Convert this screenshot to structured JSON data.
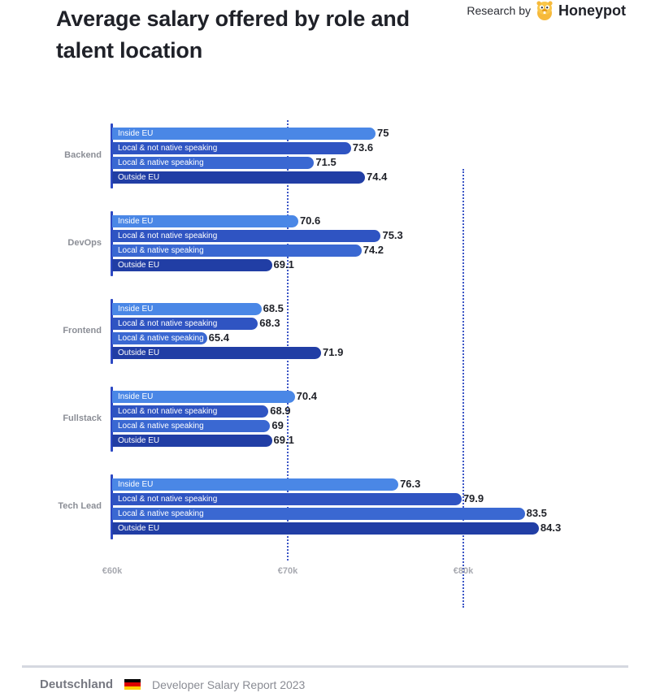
{
  "header": {
    "title": "Average salary offered by role and talent location",
    "brand_prefix": "Research by",
    "brand_name": "Honeypot",
    "brand_icon": "honeypot-bear-logo-icon"
  },
  "footer": {
    "country": "Deutschland",
    "flag_icon": "germany-flag-icon",
    "flag_colors": [
      "#000000",
      "#dd0000",
      "#ffce00"
    ],
    "report": "Developer Salary Report 2023"
  },
  "colors": {
    "Inside EU": "#4a87e6",
    "Local & not native speaking": "#2f54c2",
    "Local & native speaking": "#3a68d2",
    "Outside EU": "#213ea5",
    "gridline": "#3b55c6",
    "axis": "#2d49c4"
  },
  "chart_data": {
    "type": "bar",
    "orientation": "horizontal",
    "title": "Average salary offered by role and talent location",
    "xlabel": "",
    "ylabel": "",
    "unit": "€k",
    "xlim": [
      60,
      85
    ],
    "x_ticks": [
      "€60k",
      "€70k",
      "€80k"
    ],
    "x_tick_values": [
      60,
      70,
      80
    ],
    "grid": "dotted vertical lines at €70k and €80k",
    "legend": "inline labels inside bars",
    "categories": [
      "Backend",
      "DevOps",
      "Frontend",
      "Fullstack",
      "Tech Lead"
    ],
    "series": [
      {
        "name": "Inside EU",
        "values": [
          75,
          70.6,
          68.5,
          70.4,
          76.3
        ]
      },
      {
        "name": "Local & not native speaking",
        "values": [
          73.6,
          75.3,
          68.3,
          68.9,
          79.9
        ]
      },
      {
        "name": "Local & native speaking",
        "values": [
          71.5,
          74.2,
          65.4,
          69,
          83.5
        ]
      },
      {
        "name": "Outside EU",
        "values": [
          74.4,
          69.1,
          71.9,
          69.1,
          84.3
        ]
      }
    ],
    "value_labels": [
      [
        "75",
        "73.6",
        "71.5",
        "74.4"
      ],
      [
        "70.6",
        "75.3",
        "74.2",
        "69.1"
      ],
      [
        "68.5",
        "68.3",
        "65.4",
        "71.9"
      ],
      [
        "70.4",
        "68.9",
        "69",
        "69.1"
      ],
      [
        "76.3",
        "79.9",
        "83.5",
        "84.3"
      ]
    ]
  }
}
